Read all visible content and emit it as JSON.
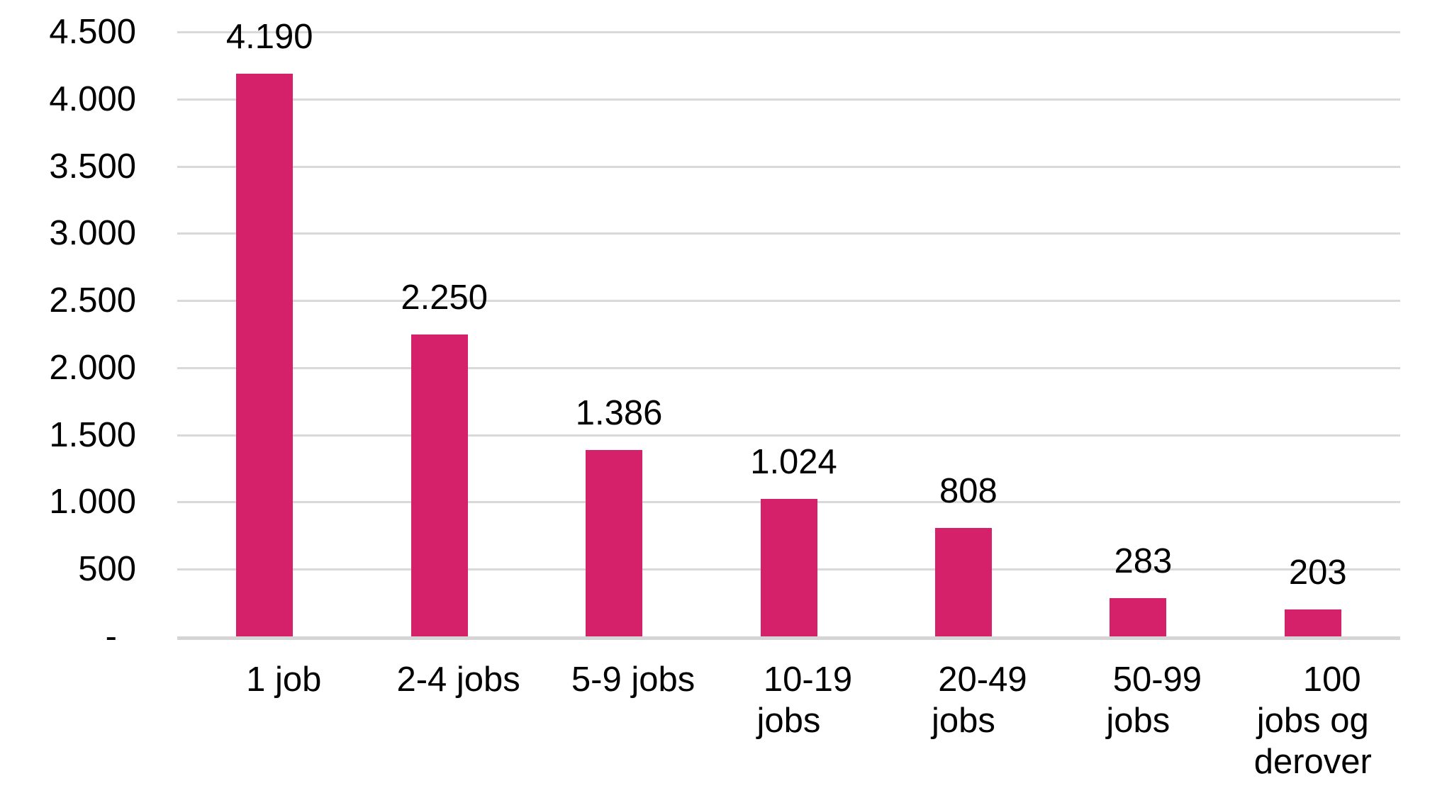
{
  "chart_data": {
    "type": "bar",
    "title": "",
    "xlabel": "",
    "ylabel": "",
    "categories": [
      "1 job",
      "2-4 jobs",
      "5-9 jobs",
      "10-19 jobs",
      "20-49 jobs",
      "50-99 jobs",
      "100 jobs og derover"
    ],
    "category_label_lines": [
      [
        "1 job"
      ],
      [
        "2-4 jobs"
      ],
      [
        "5-9 jobs"
      ],
      [
        "10-19",
        "jobs"
      ],
      [
        "20-49",
        "jobs"
      ],
      [
        "50-99",
        "jobs"
      ],
      [
        "100",
        "jobs og",
        "derover"
      ]
    ],
    "values": [
      4190,
      2250,
      1386,
      1024,
      808,
      283,
      203
    ],
    "data_labels": [
      "4.190",
      "2.250",
      "1.386",
      "1.024",
      "808",
      "283",
      "203"
    ],
    "ylim": [
      0,
      4500
    ],
    "y_tick_interval": 500,
    "y_tick_labels_bottom_to_top": [
      "-",
      "500",
      "1.000",
      "1.500",
      "2.000",
      "2.500",
      "3.000",
      "3.500",
      "4.000",
      "4.500"
    ],
    "grid": true,
    "legend_position": "none",
    "colors": {
      "bar": "#d4216a",
      "gridline": "#d9d9d9",
      "axis_line": "#d5d5d5",
      "text": "#000000",
      "background": "#ffffff"
    }
  }
}
